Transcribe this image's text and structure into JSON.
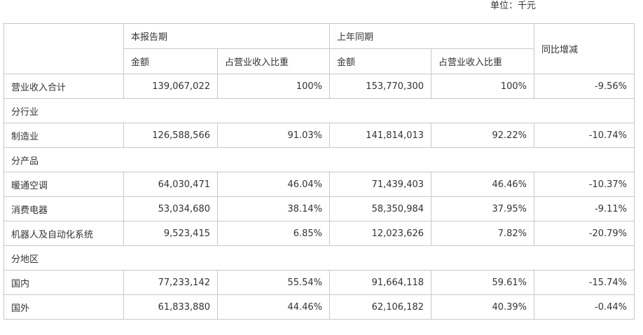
{
  "unit_label": "单位：千元",
  "headers": {
    "current_period": "本报告期",
    "prior_period": "上年同期",
    "yoy_change": "同比增减",
    "amount": "金额",
    "share": "占营业收入比重"
  },
  "rows": [
    {
      "type": "data",
      "name": "营业收入合计",
      "cur_amount": "139,067,022",
      "cur_share": "100%",
      "prev_amount": "153,770,300",
      "prev_share": "100%",
      "yoy": "-9.56%"
    },
    {
      "type": "section",
      "name": "分行业"
    },
    {
      "type": "data",
      "name": "制造业",
      "cur_amount": "126,588,566",
      "cur_share": "91.03%",
      "prev_amount": "141,814,013",
      "prev_share": "92.22%",
      "yoy": "-10.74%"
    },
    {
      "type": "section",
      "name": "分产品"
    },
    {
      "type": "data",
      "name": "暖通空调",
      "cur_amount": "64,030,471",
      "cur_share": "46.04%",
      "prev_amount": "71,439,403",
      "prev_share": "46.46%",
      "yoy": "-10.37%"
    },
    {
      "type": "data",
      "name": "消费电器",
      "cur_amount": "53,034,680",
      "cur_share": "38.14%",
      "prev_amount": "58,350,984",
      "prev_share": "37.95%",
      "yoy": "-9.11%"
    },
    {
      "type": "data",
      "name": "机器人及自动化系统",
      "cur_amount": "9,523,415",
      "cur_share": "6.85%",
      "prev_amount": "12,023,626",
      "prev_share": "7.82%",
      "yoy": "-20.79%"
    },
    {
      "type": "section",
      "name": "分地区"
    },
    {
      "type": "data",
      "name": "国内",
      "cur_amount": "77,233,142",
      "cur_share": "55.54%",
      "prev_amount": "91,664,118",
      "prev_share": "59.61%",
      "yoy": "-15.74%"
    },
    {
      "type": "data",
      "name": "国外",
      "cur_amount": "61,833,880",
      "cur_share": "44.46%",
      "prev_amount": "62,106,182",
      "prev_share": "40.39%",
      "yoy": "-0.44%"
    }
  ]
}
